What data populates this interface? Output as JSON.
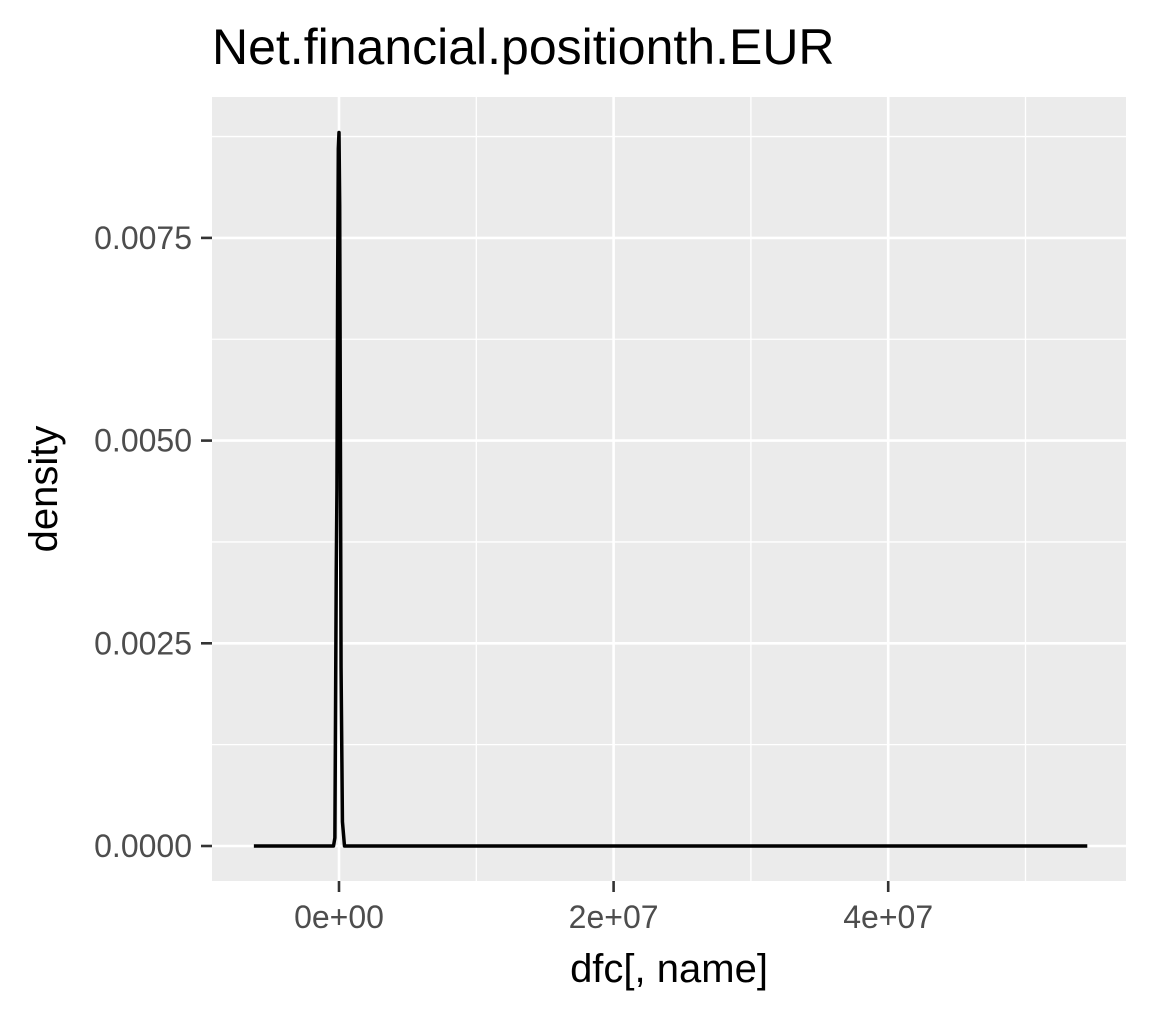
{
  "chart_data": {
    "type": "line",
    "title": "Net.financial.positionth.EUR",
    "xlabel": "dfc[, name]",
    "ylabel": "density",
    "xlim": [
      -6200000,
      54500000
    ],
    "ylim": [
      0,
      0.0088
    ],
    "x_ticks": [
      {
        "value": 0,
        "label": "0e+00"
      },
      {
        "value": 20000000,
        "label": "2e+07"
      },
      {
        "value": 40000000,
        "label": "4e+07"
      }
    ],
    "y_ticks": [
      {
        "value": 0,
        "label": "0.0000"
      },
      {
        "value": 0.0025,
        "label": "0.0025"
      },
      {
        "value": 0.005,
        "label": "0.0050"
      },
      {
        "value": 0.0075,
        "label": "0.0075"
      }
    ],
    "x_minor": [
      -10000000,
      10000000,
      30000000,
      50000000
    ],
    "y_minor": [
      0.00125,
      0.00375,
      0.00625,
      0.00875
    ],
    "grid": true,
    "series": [
      {
        "x": [
          -6200000,
          -400000,
          -300000,
          -200000,
          -150000,
          -100000,
          -50000,
          0,
          50000,
          100000,
          150000,
          250000,
          400000,
          54500000
        ],
        "y": [
          0,
          0,
          0.0001,
          0.0034,
          0.0044,
          0.0069,
          0.0086,
          0.0088,
          0.0079,
          0.0052,
          0.0022,
          0.0003,
          0,
          0
        ]
      }
    ],
    "colors": {
      "panel": "#ebebeb",
      "grid": "#ffffff",
      "line": "#000000",
      "tick": "#333333"
    }
  }
}
